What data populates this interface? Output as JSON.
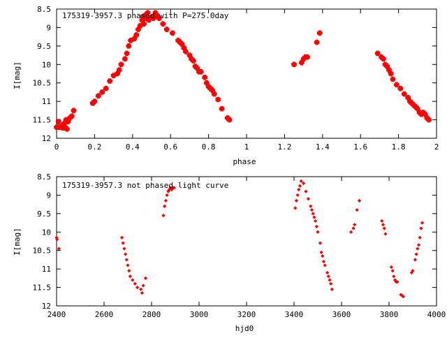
{
  "chart_data": [
    {
      "type": "scatter",
      "title": "175319-3957.3 phased with P=275.0day",
      "xlabel": "phase",
      "ylabel": "I[mag]",
      "xlim": [
        0,
        2
      ],
      "ylim": [
        12,
        8.5
      ],
      "y_inverted": true,
      "grid": false,
      "marker": "cross",
      "color": "#ff0000",
      "xticks": [
        0,
        0.2,
        0.4,
        0.6,
        0.8,
        1,
        1.2,
        1.4,
        1.6,
        1.8,
        2
      ],
      "xtick_labels": [
        "0",
        "0.2",
        "0.4",
        "0.6",
        "0.8",
        "1",
        "1.2",
        "1.4",
        "1.6",
        "1.8",
        "2"
      ],
      "yticks": [
        8.5,
        9,
        9.5,
        10,
        10.5,
        11,
        11.5,
        12
      ],
      "ytick_labels": [
        "8.5",
        "9",
        "9.5",
        "10",
        "10.5",
        "11",
        "11.5",
        "12"
      ],
      "points": [
        [
          0.0,
          11.7
        ],
        [
          0.01,
          11.55
        ],
        [
          0.015,
          11.7
        ],
        [
          0.02,
          11.7
        ],
        [
          0.03,
          11.65
        ],
        [
          0.035,
          11.72
        ],
        [
          0.04,
          11.6
        ],
        [
          0.045,
          11.7
        ],
        [
          0.05,
          11.5
        ],
        [
          0.055,
          11.75
        ],
        [
          0.06,
          11.55
        ],
        [
          0.07,
          11.45
        ],
        [
          0.08,
          11.4
        ],
        [
          0.09,
          11.25
        ],
        [
          0.19,
          11.05
        ],
        [
          0.2,
          11.0
        ],
        [
          0.22,
          10.85
        ],
        [
          0.24,
          10.75
        ],
        [
          0.26,
          10.65
        ],
        [
          0.28,
          10.45
        ],
        [
          0.3,
          10.3
        ],
        [
          0.32,
          10.25
        ],
        [
          0.33,
          10.15
        ],
        [
          0.34,
          10.0
        ],
        [
          0.36,
          9.85
        ],
        [
          0.37,
          9.7
        ],
        [
          0.38,
          9.5
        ],
        [
          0.39,
          9.35
        ],
        [
          0.41,
          9.3
        ],
        [
          0.42,
          9.2
        ],
        [
          0.43,
          9.05
        ],
        [
          0.44,
          8.95
        ],
        [
          0.45,
          8.8
        ],
        [
          0.455,
          8.7
        ],
        [
          0.46,
          8.9
        ],
        [
          0.465,
          8.75
        ],
        [
          0.47,
          8.65
        ],
        [
          0.48,
          8.6
        ],
        [
          0.485,
          8.8
        ],
        [
          0.49,
          8.75
        ],
        [
          0.5,
          8.72
        ],
        [
          0.51,
          8.75
        ],
        [
          0.52,
          8.6
        ],
        [
          0.525,
          8.65
        ],
        [
          0.53,
          8.7
        ],
        [
          0.54,
          8.75
        ],
        [
          0.56,
          8.9
        ],
        [
          0.58,
          9.05
        ],
        [
          0.61,
          9.15
        ],
        [
          0.64,
          9.35
        ],
        [
          0.65,
          9.4
        ],
        [
          0.66,
          9.45
        ],
        [
          0.67,
          9.55
        ],
        [
          0.68,
          9.65
        ],
        [
          0.7,
          9.75
        ],
        [
          0.71,
          9.85
        ],
        [
          0.72,
          9.9
        ],
        [
          0.73,
          10.05
        ],
        [
          0.74,
          10.1
        ],
        [
          0.75,
          10.2
        ],
        [
          0.76,
          10.2
        ],
        [
          0.78,
          10.35
        ],
        [
          0.79,
          10.5
        ],
        [
          0.8,
          10.6
        ],
        [
          0.81,
          10.65
        ],
        [
          0.82,
          10.7
        ],
        [
          0.83,
          10.8
        ],
        [
          0.85,
          10.95
        ],
        [
          0.87,
          11.2
        ],
        [
          0.9,
          11.45
        ],
        [
          0.91,
          11.5
        ],
        [
          1.25,
          10.0
        ],
        [
          1.29,
          9.95
        ],
        [
          1.3,
          9.85
        ],
        [
          1.31,
          9.8
        ],
        [
          1.32,
          9.8
        ],
        [
          1.37,
          9.4
        ],
        [
          1.385,
          9.15
        ],
        [
          1.69,
          9.7
        ],
        [
          1.71,
          9.8
        ],
        [
          1.72,
          9.85
        ],
        [
          1.73,
          10.0
        ],
        [
          1.74,
          10.05
        ],
        [
          1.75,
          10.15
        ],
        [
          1.76,
          10.25
        ],
        [
          1.77,
          10.4
        ],
        [
          1.79,
          10.55
        ],
        [
          1.81,
          10.65
        ],
        [
          1.83,
          10.8
        ],
        [
          1.85,
          10.9
        ],
        [
          1.86,
          11.0
        ],
        [
          1.87,
          11.05
        ],
        [
          1.88,
          11.1
        ],
        [
          1.89,
          11.15
        ],
        [
          1.9,
          11.2
        ],
        [
          1.91,
          11.3
        ],
        [
          1.92,
          11.35
        ],
        [
          1.93,
          11.3
        ],
        [
          1.94,
          11.35
        ],
        [
          1.95,
          11.45
        ],
        [
          1.96,
          11.5
        ]
      ]
    },
    {
      "type": "scatter",
      "title": "175319-3957.3 not phased light curve",
      "xlabel": "hjd0",
      "ylabel": "I[mag]",
      "xlim": [
        2400,
        4000
      ],
      "ylim": [
        12,
        8.5
      ],
      "y_inverted": true,
      "grid": false,
      "marker": "diamond",
      "color": "#ff0000",
      "xticks": [
        2400,
        2600,
        2800,
        3000,
        3200,
        3400,
        3600,
        3800,
        4000
      ],
      "xtick_labels": [
        "2400",
        "2600",
        "2800",
        "3000",
        "3200",
        "3400",
        "3600",
        "3800",
        "4000"
      ],
      "yticks": [
        8.5,
        9,
        9.5,
        10,
        10.5,
        11,
        11.5,
        12
      ],
      "ytick_labels": [
        "8.5",
        "9",
        "9.5",
        "10",
        "10.5",
        "11",
        "11.5",
        "12"
      ],
      "points": [
        [
          2400,
          10.15
        ],
        [
          2402,
          10.2
        ],
        [
          2410,
          10.45
        ],
        [
          2675,
          10.15
        ],
        [
          2680,
          10.3
        ],
        [
          2685,
          10.45
        ],
        [
          2690,
          10.6
        ],
        [
          2695,
          10.75
        ],
        [
          2700,
          10.9
        ],
        [
          2705,
          11.05
        ],
        [
          2710,
          11.2
        ],
        [
          2720,
          11.3
        ],
        [
          2730,
          11.4
        ],
        [
          2740,
          11.5
        ],
        [
          2755,
          11.55
        ],
        [
          2760,
          11.65
        ],
        [
          2765,
          11.45
        ],
        [
          2775,
          11.25
        ],
        [
          2850,
          9.55
        ],
        [
          2855,
          9.3
        ],
        [
          2860,
          9.15
        ],
        [
          2865,
          9.0
        ],
        [
          2870,
          8.9
        ],
        [
          2875,
          8.85
        ],
        [
          2880,
          8.8
        ],
        [
          2885,
          8.85
        ],
        [
          2890,
          8.8
        ],
        [
          2895,
          8.8
        ],
        [
          3405,
          9.35
        ],
        [
          3410,
          9.15
        ],
        [
          3415,
          9.0
        ],
        [
          3420,
          8.85
        ],
        [
          3425,
          8.75
        ],
        [
          3430,
          8.62
        ],
        [
          3440,
          8.68
        ],
        [
          3450,
          8.9
        ],
        [
          3460,
          9.1
        ],
        [
          3470,
          9.3
        ],
        [
          3475,
          9.4
        ],
        [
          3480,
          9.5
        ],
        [
          3485,
          9.6
        ],
        [
          3490,
          9.7
        ],
        [
          3495,
          9.85
        ],
        [
          3500,
          10.0
        ],
        [
          3510,
          10.3
        ],
        [
          3515,
          10.55
        ],
        [
          3520,
          10.65
        ],
        [
          3525,
          10.8
        ],
        [
          3530,
          10.9
        ],
        [
          3540,
          11.1
        ],
        [
          3545,
          11.2
        ],
        [
          3550,
          11.3
        ],
        [
          3555,
          11.4
        ],
        [
          3560,
          11.55
        ],
        [
          3640,
          10.0
        ],
        [
          3650,
          9.9
        ],
        [
          3655,
          9.8
        ],
        [
          3665,
          9.4
        ],
        [
          3675,
          9.15
        ],
        [
          3770,
          9.7
        ],
        [
          3775,
          9.8
        ],
        [
          3780,
          9.9
        ],
        [
          3785,
          10.05
        ],
        [
          3810,
          10.95
        ],
        [
          3815,
          11.05
        ],
        [
          3820,
          11.2
        ],
        [
          3825,
          11.3
        ],
        [
          3830,
          11.35
        ],
        [
          3835,
          11.35
        ],
        [
          3850,
          11.7
        ],
        [
          3855,
          11.72
        ],
        [
          3860,
          11.75
        ],
        [
          3895,
          11.1
        ],
        [
          3900,
          11.05
        ],
        [
          3910,
          10.75
        ],
        [
          3915,
          10.6
        ],
        [
          3920,
          10.45
        ],
        [
          3925,
          10.35
        ],
        [
          3930,
          10.15
        ],
        [
          3935,
          9.9
        ],
        [
          3940,
          9.75
        ]
      ]
    }
  ]
}
